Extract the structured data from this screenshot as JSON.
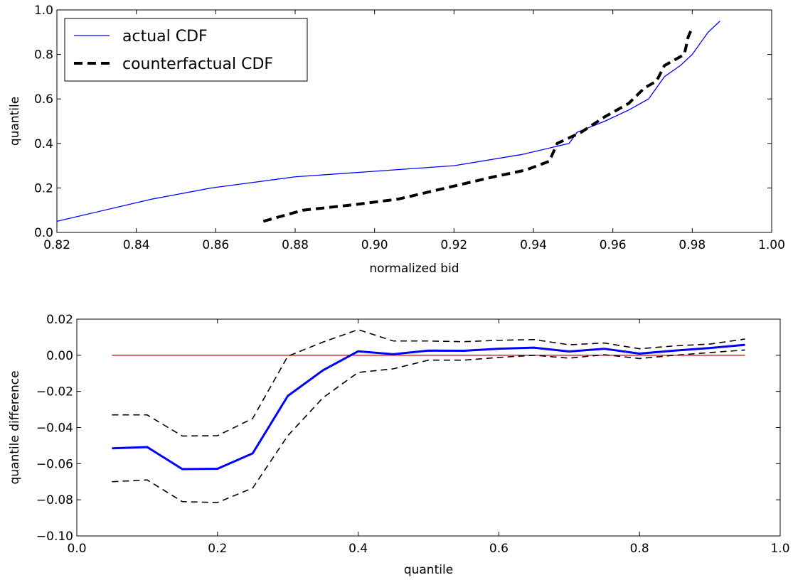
{
  "chart_data": [
    {
      "type": "line",
      "xlabel": "normalized bid",
      "ylabel": "quantile",
      "xlim": [
        0.82,
        1.0
      ],
      "ylim": [
        0.0,
        1.0
      ],
      "xticks": [
        "0.82",
        "0.84",
        "0.86",
        "0.88",
        "0.90",
        "0.92",
        "0.94",
        "0.96",
        "0.98",
        "1.00"
      ],
      "yticks": [
        "0.0",
        "0.2",
        "0.4",
        "0.6",
        "0.8",
        "1.0"
      ],
      "grid": false,
      "legend_position": "top-left",
      "series": [
        {
          "name": "actual CDF",
          "color": "#0000ff",
          "style": "solid",
          "x": [
            0.82,
            0.844,
            0.859,
            0.88,
            0.92,
            0.937,
            0.949,
            0.951,
            0.958,
            0.964,
            0.969,
            0.973,
            0.977,
            0.98,
            0.984,
            0.987
          ],
          "y": [
            0.05,
            0.15,
            0.2,
            0.25,
            0.3,
            0.35,
            0.4,
            0.45,
            0.5,
            0.55,
            0.6,
            0.7,
            0.75,
            0.8,
            0.9,
            0.95
          ]
        },
        {
          "name": "counterfactual CDF",
          "color": "#000000",
          "style": "dashed",
          "x": [
            0.872,
            0.882,
            0.895,
            0.906,
            0.918,
            0.93,
            0.938,
            0.944,
            0.946,
            0.952,
            0.958,
            0.964,
            0.968,
            0.971,
            0.973,
            0.976,
            0.978,
            0.979,
            0.98
          ],
          "y": [
            0.05,
            0.1,
            0.125,
            0.15,
            0.2,
            0.25,
            0.28,
            0.32,
            0.4,
            0.45,
            0.52,
            0.58,
            0.65,
            0.68,
            0.75,
            0.78,
            0.8,
            0.88,
            0.92
          ]
        }
      ]
    },
    {
      "type": "line",
      "xlabel": "quantile",
      "ylabel": "quantile difference",
      "xlim": [
        0.0,
        1.0
      ],
      "ylim": [
        -0.1,
        0.02
      ],
      "xticks": [
        "0.0",
        "0.2",
        "0.4",
        "0.6",
        "0.8",
        "1.0"
      ],
      "yticks": [
        "0.02",
        "0.00",
        "−0.02",
        "−0.04",
        "−0.06",
        "−0.08",
        "−0.10"
      ],
      "grid": false,
      "x": [
        0.05,
        0.1,
        0.15,
        0.2,
        0.25,
        0.3,
        0.35,
        0.4,
        0.45,
        0.5,
        0.55,
        0.6,
        0.65,
        0.7,
        0.75,
        0.8,
        0.85,
        0.9,
        0.95
      ],
      "series": [
        {
          "color": "#0000ff",
          "style": "solid-thick",
          "values": [
            -0.0515,
            -0.0508,
            -0.063,
            -0.0628,
            -0.0543,
            -0.0225,
            -0.0083,
            0.0022,
            0.0006,
            0.0026,
            0.0025,
            0.0036,
            0.0042,
            0.0021,
            0.0036,
            0.0009,
            0.0026,
            0.004,
            0.0058
          ]
        },
        {
          "color": "#000000",
          "style": "dashed",
          "values": [
            -0.033,
            -0.033,
            -0.0447,
            -0.0445,
            -0.035,
            -0.0005,
            0.0073,
            0.0142,
            0.0079,
            0.0079,
            0.0075,
            0.0083,
            0.0087,
            0.0058,
            0.0068,
            0.0036,
            0.0052,
            0.0062,
            0.009
          ]
        },
        {
          "color": "#000000",
          "style": "dashed",
          "values": [
            -0.07,
            -0.069,
            -0.081,
            -0.0815,
            -0.0735,
            -0.0445,
            -0.0235,
            -0.0095,
            -0.0075,
            -0.0027,
            -0.0027,
            -0.0012,
            0.0,
            -0.0016,
            0.0003,
            -0.0018,
            0.0,
            0.0015,
            0.0029
          ]
        },
        {
          "color": "#ff0000",
          "style": "solid",
          "x_range": [
            0.05,
            0.95
          ],
          "values_const": 0.0
        }
      ]
    }
  ]
}
